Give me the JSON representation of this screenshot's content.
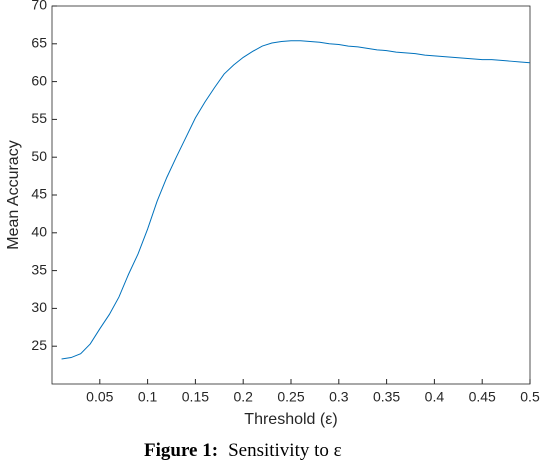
{
  "chart_data": {
    "type": "line",
    "xlabel": "Threshold (ε)",
    "ylabel": "Mean Accuracy",
    "caption_label": "Figure 1:",
    "caption_text": "Sensitivity to ε",
    "x": [
      0.01,
      0.02,
      0.03,
      0.04,
      0.05,
      0.06,
      0.07,
      0.08,
      0.09,
      0.1,
      0.11,
      0.12,
      0.13,
      0.14,
      0.15,
      0.16,
      0.17,
      0.18,
      0.19,
      0.2,
      0.21,
      0.22,
      0.23,
      0.24,
      0.25,
      0.26,
      0.27,
      0.28,
      0.29,
      0.3,
      0.31,
      0.32,
      0.33,
      0.34,
      0.35,
      0.36,
      0.37,
      0.38,
      0.39,
      0.4,
      0.41,
      0.42,
      0.43,
      0.44,
      0.45,
      0.46,
      0.47,
      0.48,
      0.49,
      0.5
    ],
    "series": [
      {
        "color": "#0072bd",
        "values": [
          23.3,
          23.5,
          24.0,
          25.3,
          27.3,
          29.2,
          31.5,
          34.5,
          37.2,
          40.5,
          44.2,
          47.3,
          50.0,
          52.6,
          55.2,
          57.3,
          59.2,
          61.0,
          62.2,
          63.2,
          64.0,
          64.7,
          65.1,
          65.3,
          65.4,
          65.4,
          65.3,
          65.2,
          65.0,
          64.9,
          64.7,
          64.6,
          64.4,
          64.2,
          64.1,
          63.9,
          63.8,
          63.7,
          63.5,
          63.4,
          63.3,
          63.2,
          63.1,
          63.0,
          62.9,
          62.9,
          62.8,
          62.7,
          62.6,
          62.5
        ]
      }
    ],
    "xlim": [
      0,
      0.5
    ],
    "xticks": [
      0.05,
      0.1,
      0.15,
      0.2,
      0.25,
      0.3,
      0.35,
      0.4,
      0.45,
      0.5
    ],
    "ylim": [
      20,
      70
    ],
    "yticks": [
      25,
      30,
      35,
      40,
      45,
      50,
      55,
      60,
      65,
      70
    ]
  }
}
